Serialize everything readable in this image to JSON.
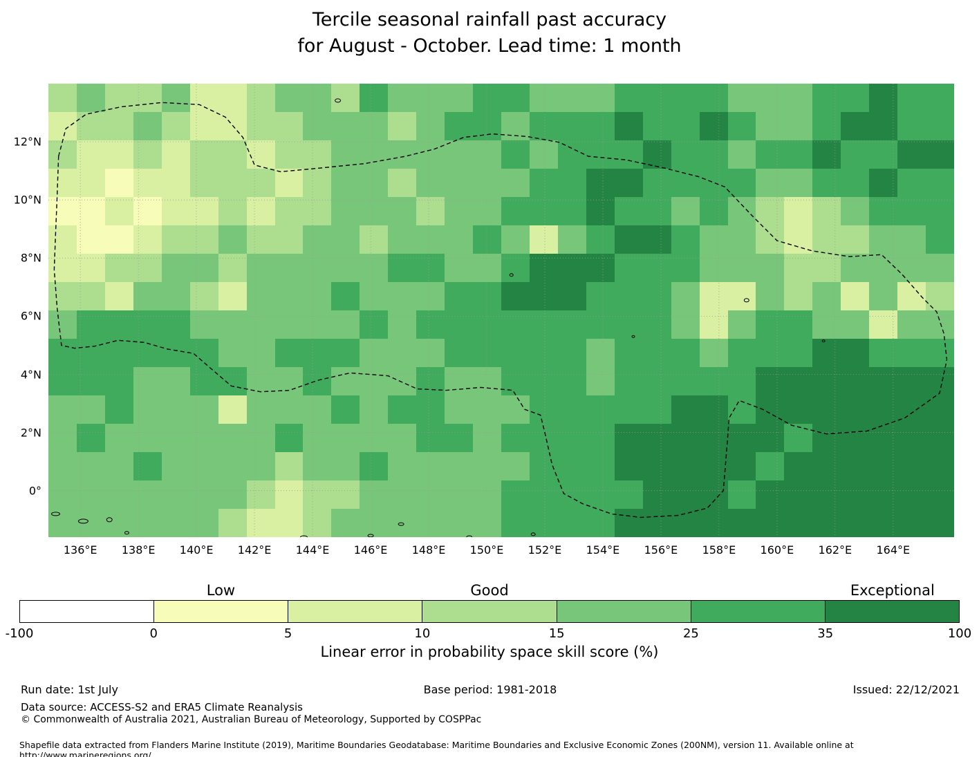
{
  "title": {
    "line1": "Tercile seasonal rainfall past accuracy",
    "line2": "for August - October. Lead time: 1 month"
  },
  "chart_data": {
    "type": "heatmap",
    "title": "Tercile seasonal rainfall past accuracy for August - October. Lead time: 1 month",
    "lon_range": [
      134.9,
      166.1
    ],
    "lat_range": [
      -1.6,
      14.0
    ],
    "x_ticks": [
      {
        "value": 136,
        "label": "136°E"
      },
      {
        "value": 138,
        "label": "138°E"
      },
      {
        "value": 140,
        "label": "140°E"
      },
      {
        "value": 142,
        "label": "142°E"
      },
      {
        "value": 144,
        "label": "144°E"
      },
      {
        "value": 146,
        "label": "146°E"
      },
      {
        "value": 148,
        "label": "148°E"
      },
      {
        "value": 150,
        "label": "150°E"
      },
      {
        "value": 152,
        "label": "152°E"
      },
      {
        "value": 154,
        "label": "154°E"
      },
      {
        "value": 156,
        "label": "156°E"
      },
      {
        "value": 158,
        "label": "158°E"
      },
      {
        "value": 160,
        "label": "160°E"
      },
      {
        "value": 162,
        "label": "162°E"
      },
      {
        "value": 164,
        "label": "164°E"
      }
    ],
    "y_ticks": [
      {
        "value": 12,
        "label": "12°N"
      },
      {
        "value": 10,
        "label": "10°N"
      },
      {
        "value": 8,
        "label": "8°N"
      },
      {
        "value": 6,
        "label": "6°N"
      },
      {
        "value": 4,
        "label": "4°N"
      },
      {
        "value": 2,
        "label": "2°N"
      },
      {
        "value": 0,
        "label": "0°"
      }
    ],
    "grid": {
      "cols": 32,
      "rows": 16,
      "note": "cell values are indices into colorbar.colors (skill-score bins)",
      "values": [
        [
          3,
          4,
          3,
          3,
          4,
          2,
          2,
          3,
          4,
          4,
          3,
          5,
          4,
          4,
          4,
          5,
          5,
          4,
          4,
          4,
          5,
          5,
          5,
          5,
          4,
          4,
          4,
          5,
          5,
          6,
          5,
          5
        ],
        [
          2,
          3,
          3,
          4,
          3,
          2,
          2,
          3,
          3,
          4,
          4,
          4,
          3,
          4,
          5,
          5,
          4,
          5,
          5,
          5,
          6,
          5,
          5,
          6,
          5,
          4,
          4,
          5,
          6,
          6,
          5,
          5
        ],
        [
          3,
          2,
          2,
          3,
          2,
          3,
          3,
          2,
          3,
          3,
          4,
          4,
          4,
          4,
          4,
          4,
          5,
          4,
          5,
          5,
          5,
          6,
          5,
          5,
          4,
          5,
          5,
          6,
          5,
          5,
          6,
          6
        ],
        [
          2,
          2,
          1,
          2,
          2,
          3,
          3,
          3,
          2,
          3,
          4,
          4,
          3,
          4,
          4,
          4,
          4,
          5,
          5,
          6,
          6,
          5,
          5,
          5,
          5,
          4,
          4,
          5,
          5,
          6,
          5,
          5
        ],
        [
          1,
          1,
          2,
          1,
          2,
          2,
          3,
          2,
          3,
          3,
          4,
          4,
          4,
          3,
          4,
          4,
          5,
          5,
          5,
          6,
          5,
          5,
          4,
          5,
          4,
          3,
          2,
          3,
          4,
          5,
          5,
          5
        ],
        [
          2,
          1,
          1,
          2,
          3,
          3,
          4,
          3,
          3,
          4,
          4,
          3,
          4,
          4,
          4,
          5,
          4,
          2,
          4,
          5,
          6,
          6,
          5,
          4,
          4,
          3,
          2,
          3,
          3,
          4,
          4,
          5
        ],
        [
          2,
          2,
          3,
          3,
          4,
          4,
          3,
          4,
          4,
          4,
          4,
          4,
          5,
          5,
          4,
          4,
          5,
          6,
          6,
          6,
          5,
          5,
          5,
          4,
          4,
          4,
          3,
          3,
          4,
          4,
          4,
          4
        ],
        [
          3,
          3,
          2,
          4,
          4,
          3,
          2,
          4,
          4,
          4,
          5,
          4,
          4,
          4,
          5,
          5,
          6,
          6,
          6,
          5,
          5,
          5,
          4,
          2,
          2,
          4,
          3,
          4,
          2,
          4,
          2,
          3
        ],
        [
          4,
          5,
          5,
          5,
          5,
          4,
          4,
          4,
          4,
          4,
          4,
          5,
          4,
          5,
          5,
          5,
          5,
          5,
          5,
          5,
          5,
          5,
          4,
          2,
          4,
          5,
          5,
          4,
          4,
          2,
          4,
          4
        ],
        [
          5,
          5,
          5,
          5,
          5,
          5,
          4,
          4,
          5,
          5,
          5,
          4,
          4,
          4,
          5,
          5,
          5,
          5,
          5,
          4,
          5,
          5,
          5,
          4,
          5,
          5,
          5,
          6,
          6,
          5,
          5,
          5
        ],
        [
          5,
          5,
          5,
          4,
          4,
          5,
          5,
          4,
          4,
          5,
          4,
          4,
          4,
          5,
          4,
          4,
          5,
          5,
          5,
          4,
          5,
          5,
          5,
          5,
          5,
          6,
          6,
          6,
          6,
          6,
          6,
          6
        ],
        [
          4,
          4,
          5,
          4,
          4,
          4,
          2,
          4,
          4,
          4,
          5,
          4,
          5,
          5,
          4,
          4,
          4,
          5,
          5,
          5,
          5,
          5,
          6,
          6,
          5,
          6,
          6,
          6,
          6,
          6,
          6,
          6
        ],
        [
          4,
          5,
          4,
          4,
          4,
          4,
          4,
          4,
          5,
          4,
          4,
          4,
          4,
          5,
          5,
          4,
          5,
          5,
          5,
          5,
          6,
          6,
          6,
          6,
          6,
          6,
          5,
          6,
          6,
          6,
          6,
          6
        ],
        [
          4,
          4,
          4,
          5,
          4,
          4,
          4,
          4,
          3,
          4,
          4,
          5,
          4,
          4,
          4,
          4,
          4,
          5,
          5,
          5,
          6,
          6,
          6,
          6,
          6,
          5,
          6,
          6,
          6,
          6,
          6,
          6
        ],
        [
          4,
          4,
          4,
          4,
          4,
          4,
          4,
          3,
          2,
          3,
          3,
          4,
          4,
          4,
          4,
          4,
          5,
          5,
          5,
          5,
          5,
          6,
          6,
          6,
          5,
          6,
          6,
          6,
          6,
          6,
          6,
          6
        ],
        [
          4,
          4,
          4,
          4,
          4,
          4,
          3,
          2,
          2,
          3,
          4,
          4,
          4,
          4,
          4,
          4,
          5,
          5,
          5,
          5,
          6,
          6,
          6,
          6,
          6,
          6,
          6,
          6,
          6,
          6,
          6,
          6
        ]
      ]
    },
    "colorbar": {
      "colors": [
        "#ffffff",
        "#f7fcb9",
        "#d9f0a3",
        "#addd8e",
        "#78c679",
        "#41ab5d",
        "#238443"
      ],
      "tick_labels": [
        "-100",
        "0",
        "5",
        "10",
        "15",
        "25",
        "35",
        "100"
      ],
      "category_labels": [
        {
          "label": "Low",
          "segment_center": 1.5
        },
        {
          "label": "Good",
          "segment_center": 3.5
        },
        {
          "label": "Exceptional",
          "segment_center": 6.5
        }
      ],
      "axis_label": "Linear error in probability space skill score (%)"
    },
    "eez_boundary": [
      [
        135.25,
        11.5
      ],
      [
        135.5,
        12.45
      ],
      [
        136.2,
        12.95
      ],
      [
        137.4,
        13.2
      ],
      [
        138.8,
        13.35
      ],
      [
        140.1,
        13.28
      ],
      [
        141.0,
        12.85
      ],
      [
        141.6,
        12.15
      ],
      [
        142.0,
        11.2
      ],
      [
        142.9,
        10.97
      ],
      [
        144.3,
        11.1
      ],
      [
        145.8,
        11.25
      ],
      [
        147.2,
        11.5
      ],
      [
        148.2,
        11.75
      ],
      [
        149.2,
        12.15
      ],
      [
        150.2,
        12.27
      ],
      [
        151.4,
        12.18
      ],
      [
        152.5,
        11.98
      ],
      [
        153.5,
        11.5
      ],
      [
        154.8,
        11.38
      ],
      [
        156.1,
        11.1
      ],
      [
        157.3,
        10.8
      ],
      [
        158.2,
        10.45
      ],
      [
        159.1,
        9.5
      ],
      [
        160.0,
        8.6
      ],
      [
        161.2,
        8.25
      ],
      [
        162.5,
        8.05
      ],
      [
        163.6,
        8.12
      ],
      [
        164.3,
        7.45
      ],
      [
        165.0,
        6.65
      ],
      [
        165.5,
        6.15
      ],
      [
        165.75,
        5.4
      ],
      [
        165.85,
        4.5
      ],
      [
        165.6,
        3.35
      ],
      [
        164.4,
        2.5
      ],
      [
        163.1,
        2.05
      ],
      [
        161.7,
        1.95
      ],
      [
        160.5,
        2.25
      ],
      [
        159.5,
        2.8
      ],
      [
        158.7,
        3.1
      ],
      [
        158.35,
        2.5
      ],
      [
        158.25,
        1.2
      ],
      [
        158.15,
        0.0
      ],
      [
        157.6,
        -0.6
      ],
      [
        156.6,
        -0.85
      ],
      [
        155.3,
        -0.92
      ],
      [
        154.3,
        -0.8
      ],
      [
        153.3,
        -0.45
      ],
      [
        152.65,
        -0.1
      ],
      [
        152.25,
        0.9
      ],
      [
        152.0,
        2.0
      ],
      [
        151.85,
        2.6
      ],
      [
        151.3,
        2.8
      ],
      [
        150.9,
        3.45
      ],
      [
        149.8,
        3.55
      ],
      [
        148.6,
        3.45
      ],
      [
        147.6,
        3.5
      ],
      [
        146.6,
        3.95
      ],
      [
        145.3,
        4.05
      ],
      [
        144.2,
        3.8
      ],
      [
        143.2,
        3.45
      ],
      [
        142.2,
        3.4
      ],
      [
        141.2,
        3.6
      ],
      [
        140.5,
        4.2
      ],
      [
        139.9,
        4.72
      ],
      [
        139.0,
        4.87
      ],
      [
        138.2,
        5.1
      ],
      [
        137.3,
        5.17
      ],
      [
        136.5,
        4.97
      ],
      [
        135.8,
        4.9
      ],
      [
        135.35,
        5.0
      ],
      [
        135.2,
        6.3
      ],
      [
        135.1,
        7.6
      ],
      [
        135.15,
        8.9
      ],
      [
        135.2,
        10.1
      ],
      [
        135.25,
        11.5
      ]
    ],
    "islands": [
      [
        144.87,
        13.42,
        4,
        2.5
      ],
      [
        150.85,
        7.42,
        2.5,
        2
      ],
      [
        158.95,
        6.55,
        3.5,
        2.5
      ],
      [
        155.05,
        5.3,
        2,
        1.5
      ],
      [
        161.6,
        5.15,
        2,
        1.5
      ],
      [
        147.05,
        -1.15,
        4,
        2
      ],
      [
        135.15,
        -0.8,
        6,
        2.5
      ],
      [
        136.1,
        -1.05,
        7,
        3
      ],
      [
        137.0,
        -1.0,
        4,
        3
      ],
      [
        137.6,
        -1.45,
        3,
        2
      ],
      [
        143.7,
        -1.6,
        5,
        2
      ],
      [
        146.0,
        -1.55,
        4,
        2
      ],
      [
        149.4,
        -1.6,
        4,
        2
      ],
      [
        151.6,
        -1.5,
        3,
        2
      ]
    ]
  },
  "footer": {
    "run_date": "Run date: 1st July",
    "base_period": "Base period: 1981-2018",
    "issued": "Issued: 22/12/2021",
    "data_source": "Data source: ACCESS-S2 and ERA5 Climate Reanalysis",
    "copyright": "© Commonwealth of Australia 2021, Australian Bureau of Meteorology, Supported by COSPPac",
    "shapefile_note": "Shapefile data extracted from Flanders Marine Institute (2019), Maritime Boundaries Geodatabase: Maritime Boundaries and Exclusive Economic Zones (200NM), version 11. Available online at http://www.marineregions.org/."
  }
}
